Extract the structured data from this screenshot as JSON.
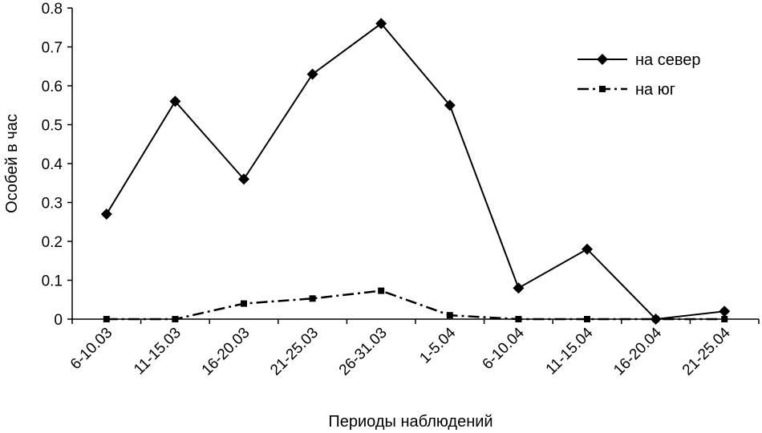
{
  "chart_data": {
    "type": "line",
    "xlabel": "Периоды наблюдений",
    "ylabel": "Особей в час",
    "ylim": [
      0,
      0.8
    ],
    "yticks": [
      "0",
      "0.1",
      "0.2",
      "0.3",
      "0.4",
      "0.5",
      "0.6",
      "0.7",
      "0.8"
    ],
    "categories": [
      "6-10.03",
      "11-15.03",
      "16-20.03",
      "21-25.03",
      "26-31.03",
      "1-5.04",
      "6-10.04",
      "11-15.04",
      "16-20.04",
      "21-25.04"
    ],
    "series": [
      {
        "name": "на север",
        "style": "solid",
        "marker": "diamond",
        "values": [
          0.27,
          0.56,
          0.36,
          0.63,
          0.76,
          0.55,
          0.08,
          0.18,
          0.0,
          0.02
        ]
      },
      {
        "name": "на юг",
        "style": "dash-dot",
        "marker": "square",
        "values": [
          0.0,
          0.0,
          0.04,
          0.053,
          0.073,
          0.01,
          0.0,
          0.0,
          0.0,
          0.0
        ]
      }
    ],
    "legend_position": "top-right",
    "grid": false,
    "color": "#000000"
  }
}
